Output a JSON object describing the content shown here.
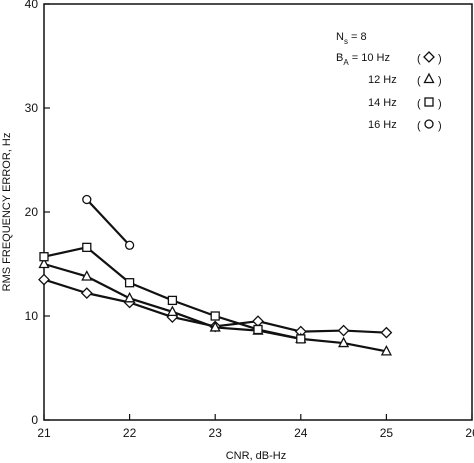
{
  "chart_data": {
    "type": "line",
    "xlabel": "CNR, dB-Hz",
    "ylabel": "RMS FREQUENCY ERROR, Hz",
    "xlim": [
      21,
      26
    ],
    "ylim": [
      0,
      40
    ],
    "x_ticks": [
      "21",
      "22",
      "23",
      "24",
      "25",
      "26"
    ],
    "y_ticks": [
      "0",
      "10",
      "20",
      "30",
      "40"
    ],
    "grid": false,
    "legend_position": "top-right",
    "legend": {
      "header": [
        "N",
        "s",
        " = 8"
      ],
      "prefix": [
        "B",
        "A",
        " = "
      ],
      "entries": [
        "10 Hz",
        "12 Hz",
        "14 Hz",
        "16 Hz"
      ]
    },
    "series": [
      {
        "marker": "diamond",
        "points": [
          [
            21,
            13.5
          ],
          [
            21.5,
            12.2
          ],
          [
            22,
            11.3
          ],
          [
            22.5,
            9.9
          ],
          [
            23,
            9.0
          ],
          [
            23.5,
            9.5
          ],
          [
            24,
            8.5
          ],
          [
            24.5,
            8.6
          ],
          [
            25,
            8.4
          ]
        ]
      },
      {
        "marker": "triangle",
        "points": [
          [
            21,
            15.0
          ],
          [
            21.5,
            13.8
          ],
          [
            22,
            11.7
          ],
          [
            22.5,
            10.4
          ],
          [
            23,
            8.9
          ],
          [
            23.5,
            8.6
          ],
          [
            24,
            7.8
          ],
          [
            24.5,
            7.4
          ],
          [
            25,
            6.6
          ]
        ]
      },
      {
        "marker": "square",
        "points": [
          [
            21,
            15.7
          ],
          [
            21.5,
            16.6
          ],
          [
            22,
            13.2
          ],
          [
            22.5,
            11.5
          ],
          [
            23,
            10.0
          ],
          [
            23.5,
            8.7
          ],
          [
            24,
            7.8
          ]
        ]
      },
      {
        "marker": "circle",
        "points": [
          [
            21.5,
            21.2
          ],
          [
            22,
            16.8
          ]
        ]
      }
    ]
  }
}
